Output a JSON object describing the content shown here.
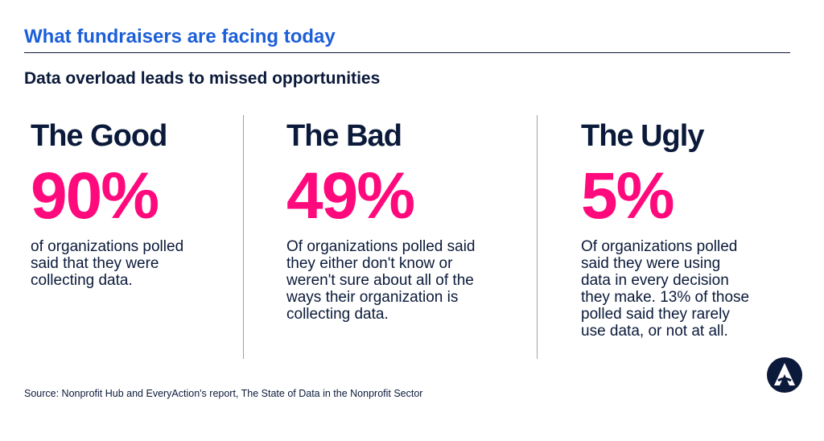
{
  "header": {
    "title": "What fundraisers are facing today",
    "subtitle": "Data overload leads to missed opportunities"
  },
  "columns": [
    {
      "heading": "The Good",
      "stat": "90%",
      "lines": [
        "of organizations polled",
        "said that they were",
        "collecting data."
      ]
    },
    {
      "heading": "The Bad",
      "stat": "49%",
      "lines": [
        "Of organizations polled said",
        "they either don't know or",
        "weren't sure about all of the",
        "ways their organization is",
        "collecting data."
      ]
    },
    {
      "heading": "The Ugly",
      "stat": "5%",
      "lines": [
        "Of organizations polled",
        "said they were using",
        "data in every decision",
        "they make. 13% of those",
        "polled said they rarely",
        "use data, or not at all."
      ]
    }
  ],
  "source": "Source: Nonprofit Hub and EveryAction's report, The State of Data in the Nonprofit Sector"
}
